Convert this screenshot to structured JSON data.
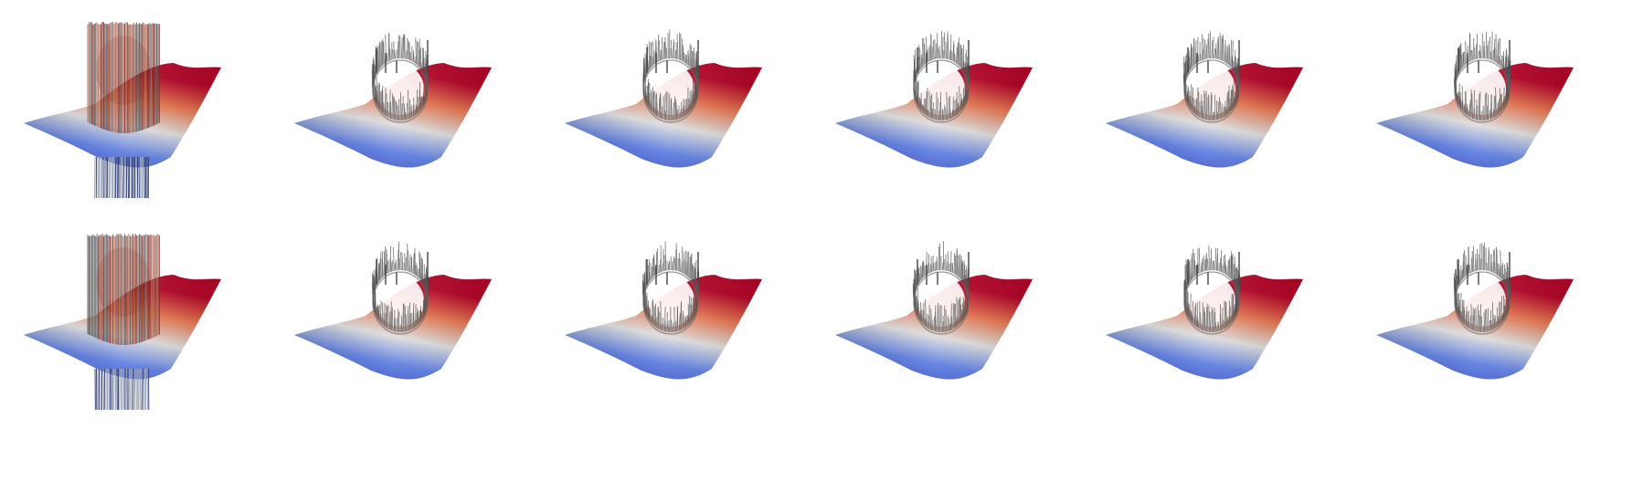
{
  "figure": {
    "background": "#ffffff",
    "rows": 2,
    "columns": 6,
    "panels": [
      {
        "row": 0,
        "col": 0,
        "variant": "full-cylinder"
      },
      {
        "row": 0,
        "col": 1,
        "variant": "ring-artifacts"
      },
      {
        "row": 0,
        "col": 2,
        "variant": "ring-artifacts"
      },
      {
        "row": 0,
        "col": 3,
        "variant": "ring-artifacts"
      },
      {
        "row": 0,
        "col": 4,
        "variant": "ring-artifacts"
      },
      {
        "row": 0,
        "col": 5,
        "variant": "ring-artifacts"
      },
      {
        "row": 1,
        "col": 0,
        "variant": "full-cylinder"
      },
      {
        "row": 1,
        "col": 1,
        "variant": "ring-artifacts"
      },
      {
        "row": 1,
        "col": 2,
        "variant": "ring-artifacts"
      },
      {
        "row": 1,
        "col": 3,
        "variant": "ring-artifacts"
      },
      {
        "row": 1,
        "col": 4,
        "variant": "ring-artifacts"
      },
      {
        "row": 1,
        "col": 5,
        "variant": "ring-artifacts"
      }
    ],
    "colormap": {
      "name": "coolwarm",
      "low": "#3b4cc0",
      "mid": "#dddddd",
      "high": "#b40426"
    },
    "artifact_color": "#555555"
  }
}
